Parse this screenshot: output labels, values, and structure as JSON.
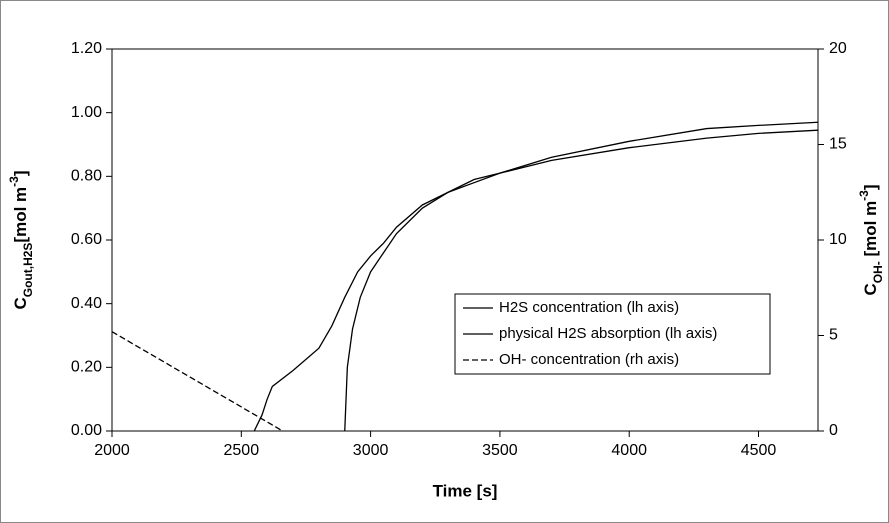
{
  "chart_data": {
    "type": "line",
    "xlabel": "Time [s]",
    "ylabel": [
      "C",
      "Gout,H2S",
      "[mol m",
      "-3",
      "]"
    ],
    "y2label": [
      "C",
      "OH-",
      " [mol m",
      "-3",
      "]"
    ],
    "xlim": [
      2000,
      4730
    ],
    "xticks": [
      2000,
      2500,
      3000,
      3500,
      4000,
      4500
    ],
    "ylim": [
      0,
      1.2
    ],
    "yticks": [
      {
        "value": 0,
        "label": "0.00"
      },
      {
        "value": 0.2,
        "label": "0.20"
      },
      {
        "value": 0.4,
        "label": "0.40"
      },
      {
        "value": 0.6,
        "label": "0.60"
      },
      {
        "value": 0.8,
        "label": "0.80"
      },
      {
        "value": 1.0,
        "label": "1.00"
      },
      {
        "value": 1.2,
        "label": "1.20"
      }
    ],
    "y2lim": [
      0,
      20
    ],
    "y2ticks": [
      0,
      5,
      10,
      15,
      20
    ],
    "legend": "center right",
    "series": [
      {
        "name": "H2S concentration (lh axis)",
        "color": "#000000",
        "dash": false,
        "x": [
          2550,
          2580,
          2600,
          2620,
          2700,
          2800,
          2850,
          2900,
          2950,
          3000,
          3050,
          3100,
          3200,
          3300,
          3400,
          3500,
          3700,
          4000,
          4300,
          4500,
          4730
        ],
        "values": [
          0,
          0.05,
          0.1,
          0.14,
          0.19,
          0.26,
          0.33,
          0.42,
          0.5,
          0.55,
          0.59,
          0.64,
          0.71,
          0.75,
          0.79,
          0.81,
          0.85,
          0.89,
          0.92,
          0.935,
          0.945
        ]
      },
      {
        "name": "physical H2S absorption (lh axis)",
        "color": "#000000",
        "dash": false,
        "x": [
          2900,
          2910,
          2930,
          2960,
          3000,
          3050,
          3100,
          3200,
          3300,
          3400,
          3500,
          3700,
          4000,
          4300,
          4500,
          4730
        ],
        "values": [
          0,
          0.2,
          0.32,
          0.42,
          0.5,
          0.56,
          0.62,
          0.7,
          0.75,
          0.78,
          0.81,
          0.86,
          0.91,
          0.95,
          0.96,
          0.97
        ]
      },
      {
        "name": "OH- concentration (rh axis)",
        "color": "#000000",
        "dash": true,
        "axis": "y2",
        "x": [
          2000,
          2660
        ],
        "values": [
          5.2,
          0
        ]
      }
    ]
  }
}
